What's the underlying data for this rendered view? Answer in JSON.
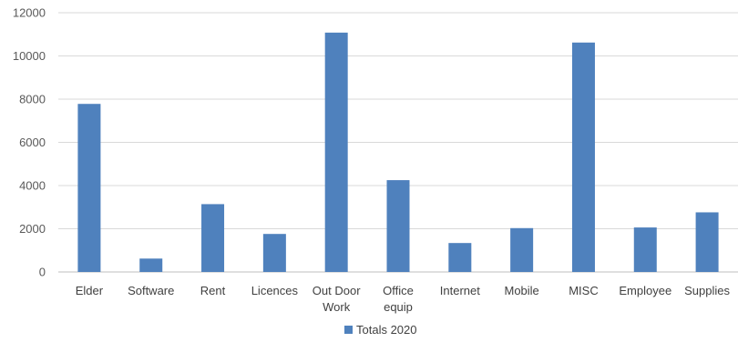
{
  "chart_data": {
    "type": "bar",
    "categories": [
      "Elder",
      "Software",
      "Rent",
      "Licences",
      "Out Door Work",
      "Office equip",
      "Internet",
      "Mobile",
      "MISC",
      "Employee",
      "Supplies"
    ],
    "category_lines": [
      [
        "Elder"
      ],
      [
        "Software"
      ],
      [
        "Rent"
      ],
      [
        "Licences"
      ],
      [
        "Out Door",
        "Work"
      ],
      [
        "Office",
        "equip"
      ],
      [
        "Internet"
      ],
      [
        "Mobile"
      ],
      [
        "MISC"
      ],
      [
        "Employee"
      ],
      [
        "Supplies"
      ]
    ],
    "series": [
      {
        "name": "Totals 2020",
        "values": [
          7780,
          620,
          3140,
          1760,
          11080,
          4250,
          1340,
          2030,
          10620,
          2060,
          2760
        ]
      }
    ],
    "ylim": [
      0,
      12000
    ],
    "yticks": [
      0,
      2000,
      4000,
      6000,
      8000,
      10000,
      12000
    ],
    "grid": true,
    "legend_position": "bottom",
    "colors": {
      "bar": "#4f81bd",
      "grid": "#d9d9d9",
      "axis": "#bfbfbf"
    }
  }
}
